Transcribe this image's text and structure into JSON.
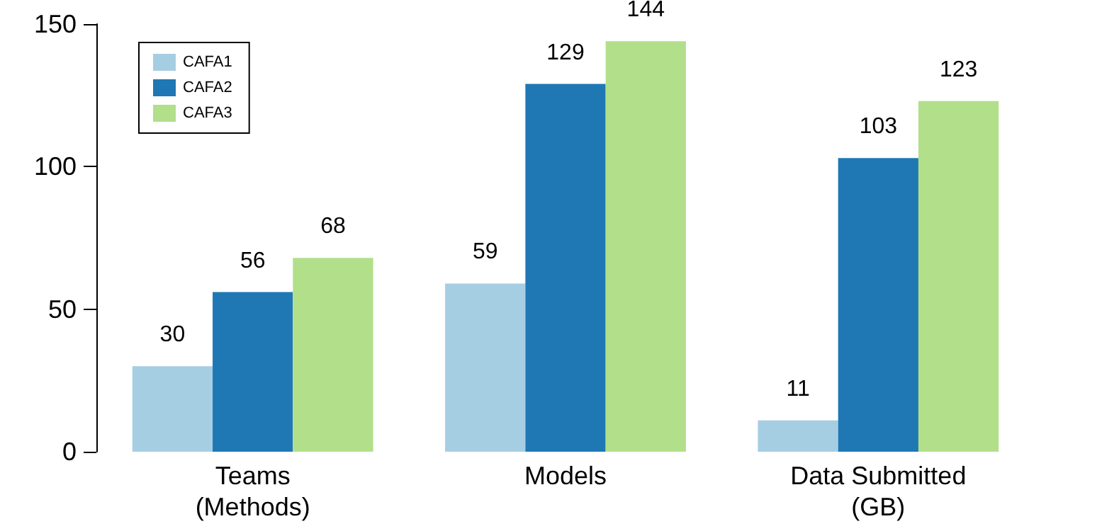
{
  "chart_data": {
    "type": "bar",
    "categories": [
      "Teams\n(Methods)",
      "Models",
      "Data Submitted\n(GB)"
    ],
    "series": [
      {
        "name": "CAFA1",
        "color": "#a6cee3",
        "values": [
          30,
          59,
          11
        ]
      },
      {
        "name": "CAFA2",
        "color": "#1f78b4",
        "values": [
          56,
          129,
          103
        ]
      },
      {
        "name": "CAFA3",
        "color": "#b2df8a",
        "values": [
          68,
          144,
          123
        ]
      }
    ],
    "ylim": [
      0,
      150
    ],
    "yticks": [
      0,
      50,
      100,
      150
    ],
    "grid": false,
    "legend": "top left",
    "data_labels": true
  }
}
